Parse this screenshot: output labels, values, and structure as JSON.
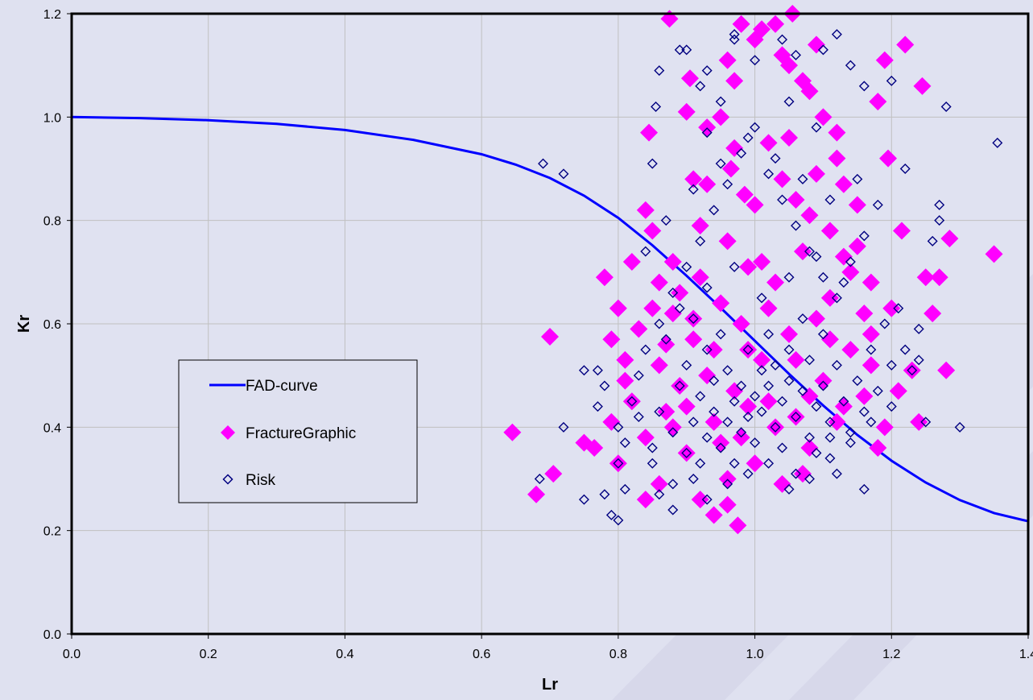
{
  "chart_data": {
    "type": "scatter",
    "xlabel": "Lr",
    "ylabel": "Kr",
    "xlim": [
      0,
      1.4
    ],
    "ylim": [
      0,
      1.2
    ],
    "x_ticks": [
      "0.0",
      "0.2",
      "0.4",
      "0.6",
      "0.8",
      "1.0",
      "1.2",
      "1.4"
    ],
    "y_ticks": [
      "0.0",
      "0.2",
      "0.4",
      "0.6",
      "0.8",
      "1.0",
      "1.2"
    ],
    "grid": true,
    "legend_position": "middle-left",
    "series": [
      {
        "name": "FAD-curve",
        "kind": "line",
        "color": "#0000ff",
        "x": [
          0,
          0.1,
          0.2,
          0.3,
          0.4,
          0.5,
          0.6,
          0.65,
          0.7,
          0.75,
          0.8,
          0.85,
          0.9,
          0.95,
          1.0,
          1.05,
          1.1,
          1.15,
          1.2,
          1.25,
          1.3,
          1.35,
          1.4
        ],
        "y": [
          1.0,
          0.998,
          0.994,
          0.987,
          0.975,
          0.956,
          0.928,
          0.908,
          0.882,
          0.848,
          0.805,
          0.752,
          0.693,
          0.631,
          0.567,
          0.503,
          0.442,
          0.385,
          0.335,
          0.293,
          0.259,
          0.234,
          0.218
        ]
      },
      {
        "name": "FractureGraphic",
        "kind": "scatter",
        "marker": "filled-diamond",
        "color": "#ff00ff",
        "points": [
          [
            0.645,
            0.39
          ],
          [
            0.68,
            0.27
          ],
          [
            0.7,
            0.575
          ],
          [
            0.705,
            0.31
          ],
          [
            0.75,
            0.37
          ],
          [
            0.765,
            0.36
          ],
          [
            0.78,
            0.69
          ],
          [
            0.79,
            0.41
          ],
          [
            0.8,
            0.63
          ],
          [
            0.81,
            0.53
          ],
          [
            0.82,
            0.72
          ],
          [
            0.84,
            0.82
          ],
          [
            0.845,
            0.97
          ],
          [
            0.85,
            0.78
          ],
          [
            0.86,
            0.68
          ],
          [
            0.875,
            1.19
          ],
          [
            0.88,
            0.62
          ],
          [
            0.89,
            0.48
          ],
          [
            0.9,
            1.01
          ],
          [
            0.905,
            1.075
          ],
          [
            0.91,
            0.88
          ],
          [
            0.92,
            0.69
          ],
          [
            0.93,
            0.98
          ],
          [
            0.94,
            0.23
          ],
          [
            0.95,
            1.0
          ],
          [
            0.96,
            1.11
          ],
          [
            0.965,
            0.9
          ],
          [
            0.97,
            1.07
          ],
          [
            0.975,
            0.21
          ],
          [
            0.98,
            1.18
          ],
          [
            0.985,
            0.85
          ],
          [
            0.99,
            0.55
          ],
          [
            1.0,
            1.15
          ],
          [
            1.01,
            1.17
          ],
          [
            1.02,
            0.95
          ],
          [
            1.03,
            1.18
          ],
          [
            1.04,
            1.12
          ],
          [
            1.05,
            1.1
          ],
          [
            1.055,
            1.2
          ],
          [
            1.06,
            0.84
          ],
          [
            1.07,
            1.07
          ],
          [
            1.08,
            1.05
          ],
          [
            1.09,
            1.14
          ],
          [
            1.1,
            1.0
          ],
          [
            1.11,
            0.78
          ],
          [
            1.12,
            0.92
          ],
          [
            1.13,
            0.87
          ],
          [
            1.14,
            0.7
          ],
          [
            1.15,
            0.75
          ],
          [
            1.16,
            0.62
          ],
          [
            1.17,
            0.52
          ],
          [
            1.18,
            1.03
          ],
          [
            1.19,
            1.11
          ],
          [
            1.195,
            0.92
          ],
          [
            1.2,
            0.63
          ],
          [
            1.21,
            0.47
          ],
          [
            1.215,
            0.78
          ],
          [
            1.22,
            1.14
          ],
          [
            1.23,
            0.51
          ],
          [
            1.24,
            0.41
          ],
          [
            1.245,
            1.06
          ],
          [
            1.25,
            0.69
          ],
          [
            1.26,
            0.62
          ],
          [
            1.27,
            0.69
          ],
          [
            1.28,
            0.51
          ],
          [
            1.285,
            0.765
          ],
          [
            1.35,
            0.735
          ],
          [
            0.8,
            0.33
          ],
          [
            0.82,
            0.45
          ],
          [
            0.84,
            0.38
          ],
          [
            0.86,
            0.29
          ],
          [
            0.88,
            0.4
          ],
          [
            0.9,
            0.35
          ],
          [
            0.92,
            0.26
          ],
          [
            0.94,
            0.41
          ],
          [
            0.96,
            0.3
          ],
          [
            0.98,
            0.38
          ],
          [
            1.0,
            0.33
          ],
          [
            1.02,
            0.45
          ],
          [
            1.04,
            0.29
          ],
          [
            1.06,
            0.42
          ],
          [
            1.08,
            0.36
          ],
          [
            1.1,
            0.49
          ],
          [
            1.12,
            0.41
          ],
          [
            1.14,
            0.55
          ],
          [
            1.16,
            0.46
          ],
          [
            1.18,
            0.36
          ],
          [
            0.83,
            0.59
          ],
          [
            0.87,
            0.56
          ],
          [
            0.91,
            0.61
          ],
          [
            0.95,
            0.64
          ],
          [
            0.99,
            0.71
          ],
          [
            1.03,
            0.68
          ],
          [
            1.07,
            0.74
          ],
          [
            1.11,
            0.65
          ],
          [
            1.15,
            0.83
          ],
          [
            0.88,
            0.72
          ],
          [
            0.92,
            0.79
          ],
          [
            0.96,
            0.76
          ],
          [
            1.0,
            0.83
          ],
          [
            1.04,
            0.88
          ],
          [
            1.08,
            0.81
          ],
          [
            1.12,
            0.97
          ],
          [
            0.93,
            0.5
          ],
          [
            0.97,
            0.47
          ],
          [
            1.01,
            0.53
          ],
          [
            1.05,
            0.58
          ],
          [
            1.09,
            0.61
          ],
          [
            0.86,
            0.52
          ],
          [
            0.9,
            0.44
          ],
          [
            0.94,
            0.55
          ],
          [
            0.98,
            0.6
          ],
          [
            1.02,
            0.63
          ],
          [
            1.06,
            0.53
          ],
          [
            1.13,
            0.44
          ],
          [
            1.17,
            0.58
          ],
          [
            1.19,
            0.4
          ],
          [
            0.79,
            0.57
          ],
          [
            0.81,
            0.49
          ],
          [
            0.85,
            0.63
          ],
          [
            0.89,
            0.66
          ],
          [
            0.93,
            0.87
          ],
          [
            0.97,
            0.94
          ],
          [
            1.01,
            0.72
          ],
          [
            1.05,
            0.96
          ],
          [
            1.09,
            0.89
          ],
          [
            1.13,
            0.73
          ],
          [
            1.17,
            0.68
          ],
          [
            0.87,
            0.43
          ],
          [
            0.91,
            0.57
          ],
          [
            0.95,
            0.37
          ],
          [
            0.99,
            0.44
          ],
          [
            1.03,
            0.4
          ],
          [
            1.07,
            0.31
          ],
          [
            1.11,
            0.57
          ],
          [
            0.84,
            0.26
          ],
          [
            0.96,
            0.25
          ],
          [
            1.08,
            0.46
          ]
        ]
      },
      {
        "name": "Risk",
        "kind": "scatter",
        "marker": "open-diamond",
        "color": "#000080",
        "points": [
          [
            0.69,
            0.91
          ],
          [
            0.72,
            0.89
          ],
          [
            0.685,
            0.3
          ],
          [
            0.72,
            0.4
          ],
          [
            0.75,
            0.26
          ],
          [
            0.75,
            0.51
          ],
          [
            0.77,
            0.51
          ],
          [
            0.77,
            0.44
          ],
          [
            0.78,
            0.27
          ],
          [
            0.79,
            0.23
          ],
          [
            0.8,
            0.22
          ],
          [
            0.78,
            0.48
          ],
          [
            0.8,
            0.33
          ],
          [
            0.81,
            0.28
          ],
          [
            0.84,
            0.74
          ],
          [
            0.85,
            0.91
          ],
          [
            0.855,
            1.02
          ],
          [
            0.86,
            1.09
          ],
          [
            0.89,
            1.13
          ],
          [
            0.9,
            1.13
          ],
          [
            0.92,
            1.06
          ],
          [
            0.93,
            1.09
          ],
          [
            0.97,
            1.16
          ],
          [
            0.97,
            1.15
          ],
          [
            1.0,
            1.11
          ],
          [
            1.04,
            1.15
          ],
          [
            1.06,
            1.12
          ],
          [
            1.1,
            1.13
          ],
          [
            1.12,
            1.16
          ],
          [
            1.14,
            1.1
          ],
          [
            1.16,
            1.06
          ],
          [
            1.2,
            1.07
          ],
          [
            1.28,
            1.02
          ],
          [
            1.355,
            0.95
          ],
          [
            1.3,
            0.4
          ],
          [
            1.25,
            0.41
          ],
          [
            1.23,
            0.51
          ],
          [
            1.24,
            0.53
          ],
          [
            1.24,
            0.59
          ],
          [
            1.26,
            0.76
          ],
          [
            1.27,
            0.8
          ],
          [
            1.27,
            0.83
          ],
          [
            1.22,
            0.9
          ],
          [
            1.16,
            0.28
          ],
          [
            1.12,
            0.31
          ],
          [
            1.11,
            0.38
          ],
          [
            0.82,
            0.45
          ],
          [
            0.83,
            0.5
          ],
          [
            0.84,
            0.55
          ],
          [
            0.85,
            0.36
          ],
          [
            0.86,
            0.43
          ],
          [
            0.87,
            0.57
          ],
          [
            0.88,
            0.39
          ],
          [
            0.88,
            0.29
          ],
          [
            0.89,
            0.48
          ],
          [
            0.9,
            0.35
          ],
          [
            0.9,
            0.52
          ],
          [
            0.91,
            0.41
          ],
          [
            0.91,
            0.61
          ],
          [
            0.92,
            0.33
          ],
          [
            0.92,
            0.46
          ],
          [
            0.93,
            0.55
          ],
          [
            0.93,
            0.38
          ],
          [
            0.94,
            0.49
          ],
          [
            0.94,
            0.43
          ],
          [
            0.95,
            0.36
          ],
          [
            0.95,
            0.58
          ],
          [
            0.96,
            0.41
          ],
          [
            0.96,
            0.51
          ],
          [
            0.97,
            0.45
          ],
          [
            0.97,
            0.33
          ],
          [
            0.98,
            0.48
          ],
          [
            0.98,
            0.39
          ],
          [
            0.99,
            0.55
          ],
          [
            0.99,
            0.42
          ],
          [
            1.0,
            0.46
          ],
          [
            1.0,
            0.37
          ],
          [
            1.01,
            0.51
          ],
          [
            1.01,
            0.43
          ],
          [
            1.02,
            0.48
          ],
          [
            1.02,
            0.58
          ],
          [
            1.03,
            0.4
          ],
          [
            1.03,
            0.52
          ],
          [
            1.04,
            0.45
          ],
          [
            1.04,
            0.36
          ],
          [
            1.05,
            0.49
          ],
          [
            1.05,
            0.55
          ],
          [
            1.06,
            0.42
          ],
          [
            1.06,
            0.31
          ],
          [
            1.07,
            0.47
          ],
          [
            1.07,
            0.61
          ],
          [
            1.08,
            0.38
          ],
          [
            1.08,
            0.53
          ],
          [
            1.09,
            0.44
          ],
          [
            1.09,
            0.35
          ],
          [
            1.1,
            0.48
          ],
          [
            1.1,
            0.58
          ],
          [
            1.11,
            0.41
          ],
          [
            1.12,
            0.52
          ],
          [
            1.13,
            0.45
          ],
          [
            1.14,
            0.39
          ],
          [
            1.15,
            0.49
          ],
          [
            1.16,
            0.43
          ],
          [
            1.17,
            0.55
          ],
          [
            1.18,
            0.47
          ],
          [
            1.19,
            0.6
          ],
          [
            1.2,
            0.52
          ],
          [
            1.21,
            0.63
          ],
          [
            0.88,
            0.66
          ],
          [
            0.9,
            0.71
          ],
          [
            0.92,
            0.76
          ],
          [
            0.94,
            0.82
          ],
          [
            0.96,
            0.87
          ],
          [
            0.98,
            0.93
          ],
          [
            1.0,
            0.98
          ],
          [
            1.02,
            0.89
          ],
          [
            1.04,
            0.84
          ],
          [
            1.06,
            0.79
          ],
          [
            1.08,
            0.74
          ],
          [
            1.1,
            0.69
          ],
          [
            1.12,
            0.65
          ],
          [
            1.14,
            0.72
          ],
          [
            1.16,
            0.77
          ],
          [
            1.18,
            0.83
          ],
          [
            0.86,
            0.6
          ],
          [
            0.89,
            0.63
          ],
          [
            0.93,
            0.67
          ],
          [
            0.97,
            0.71
          ],
          [
            1.01,
            0.65
          ],
          [
            1.05,
            0.69
          ],
          [
            1.09,
            0.73
          ],
          [
            1.13,
            0.68
          ],
          [
            0.91,
            0.86
          ],
          [
            0.95,
            0.91
          ],
          [
            0.99,
            0.96
          ],
          [
            1.03,
            0.92
          ],
          [
            1.07,
            0.88
          ],
          [
            1.11,
            0.84
          ],
          [
            1.15,
            0.88
          ],
          [
            0.87,
            0.8
          ],
          [
            0.93,
            0.97
          ],
          [
            1.05,
            1.03
          ],
          [
            1.09,
            0.98
          ],
          [
            0.95,
            1.03
          ],
          [
            0.8,
            0.4
          ],
          [
            0.81,
            0.37
          ],
          [
            0.83,
            0.42
          ],
          [
            0.85,
            0.33
          ],
          [
            0.86,
            0.27
          ],
          [
            0.88,
            0.24
          ],
          [
            0.91,
            0.3
          ],
          [
            0.93,
            0.26
          ],
          [
            0.96,
            0.29
          ],
          [
            0.99,
            0.31
          ],
          [
            1.02,
            0.33
          ],
          [
            1.05,
            0.28
          ],
          [
            1.08,
            0.3
          ],
          [
            1.11,
            0.34
          ],
          [
            1.14,
            0.37
          ],
          [
            1.17,
            0.41
          ],
          [
            1.2,
            0.44
          ],
          [
            1.22,
            0.55
          ]
        ]
      }
    ]
  }
}
